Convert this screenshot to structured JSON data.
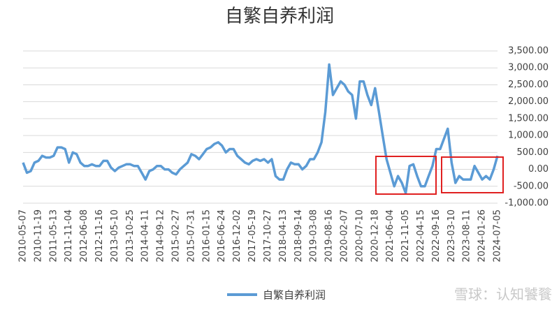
{
  "chart_data": {
    "type": "line",
    "title": "自繁自养利润",
    "categories": [
      "2010-05-07",
      null,
      null,
      null,
      "2010-11-19",
      null,
      null,
      null,
      "2011-05-13",
      null,
      null,
      null,
      "2011-11-04",
      null,
      null,
      null,
      "2012-06-08",
      null,
      null,
      null,
      "2012-11-16",
      null,
      null,
      null,
      "2013-05-10",
      null,
      null,
      null,
      "2013-10-25",
      null,
      null,
      null,
      "2014-04-11",
      null,
      null,
      null,
      "2014-09-12",
      null,
      null,
      null,
      "2015-02-27",
      null,
      null,
      null,
      "2015-07-31",
      null,
      null,
      null,
      "2016-01-15",
      null,
      null,
      null,
      "2016-06-24",
      null,
      null,
      null,
      "2016-12-02",
      null,
      null,
      null,
      "2017-05-19",
      null,
      null,
      null,
      "2017-10-27",
      null,
      null,
      null,
      "2018-04-13",
      null,
      null,
      null,
      "2018-09-14",
      null,
      null,
      null,
      "2019-03-08",
      null,
      null,
      null,
      "2019-08-16",
      null,
      null,
      null,
      "2020-02-07",
      null,
      null,
      null,
      "2020-07-10",
      null,
      null,
      null,
      "2020-12-18",
      null,
      null,
      null,
      "2021-06-04",
      null,
      null,
      null,
      "2021-11-05",
      null,
      null,
      null,
      "2022-04-15",
      null,
      null,
      null,
      "2022-09-16",
      null,
      null,
      null,
      "2023-03-10",
      null,
      null,
      null,
      "2023-08-11",
      null,
      null,
      null,
      "2024-01-26",
      null,
      null,
      null,
      "2024-07-05"
    ],
    "series": [
      {
        "name": "自繁自养利润",
        "color": "#5b9bd5",
        "values": [
          200,
          -100,
          -50,
          200,
          250,
          400,
          350,
          350,
          400,
          650,
          650,
          600,
          200,
          500,
          450,
          200,
          100,
          100,
          150,
          100,
          100,
          250,
          250,
          50,
          -50,
          50,
          100,
          150,
          150,
          100,
          100,
          -100,
          -300,
          -50,
          0,
          100,
          100,
          0,
          0,
          -100,
          -150,
          0,
          100,
          200,
          450,
          400,
          300,
          450,
          600,
          650,
          750,
          800,
          700,
          500,
          600,
          600,
          400,
          300,
          200,
          150,
          250,
          300,
          250,
          300,
          200,
          300,
          -200,
          -300,
          -300,
          0,
          200,
          150,
          150,
          0,
          100,
          300,
          300,
          500,
          800,
          1700,
          3100,
          2200,
          2400,
          2600,
          2500,
          2300,
          2200,
          1500,
          2600,
          2600,
          2200,
          1900,
          2400,
          1700,
          1000,
          300,
          -100,
          -500,
          -200,
          -400,
          -700,
          100,
          150,
          -200,
          -500,
          -500,
          -200,
          100,
          600,
          600,
          900,
          1200,
          200,
          -400,
          -200,
          -300,
          -300,
          -300,
          100,
          -100,
          -300,
          -200,
          -300,
          0,
          400
        ]
      }
    ],
    "ylim": [
      -1000,
      3500
    ],
    "yticks": [
      {
        "value": -1000,
        "label": "-1,000.00"
      },
      {
        "value": -500,
        "label": "-500.00"
      },
      {
        "value": 0,
        "label": "0.00"
      },
      {
        "value": 500,
        "label": "500.00"
      },
      {
        "value": 1000,
        "label": "1,000.00"
      },
      {
        "value": 1500,
        "label": "1,500.00"
      },
      {
        "value": 2000,
        "label": "2,000.00"
      },
      {
        "value": 2500,
        "label": "2,500.00"
      },
      {
        "value": 3000,
        "label": "3,000.00"
      },
      {
        "value": 3500,
        "label": "3,500.00"
      }
    ],
    "grid": true,
    "legend": "bottom",
    "watermark": "雪球：认知饕餮"
  }
}
